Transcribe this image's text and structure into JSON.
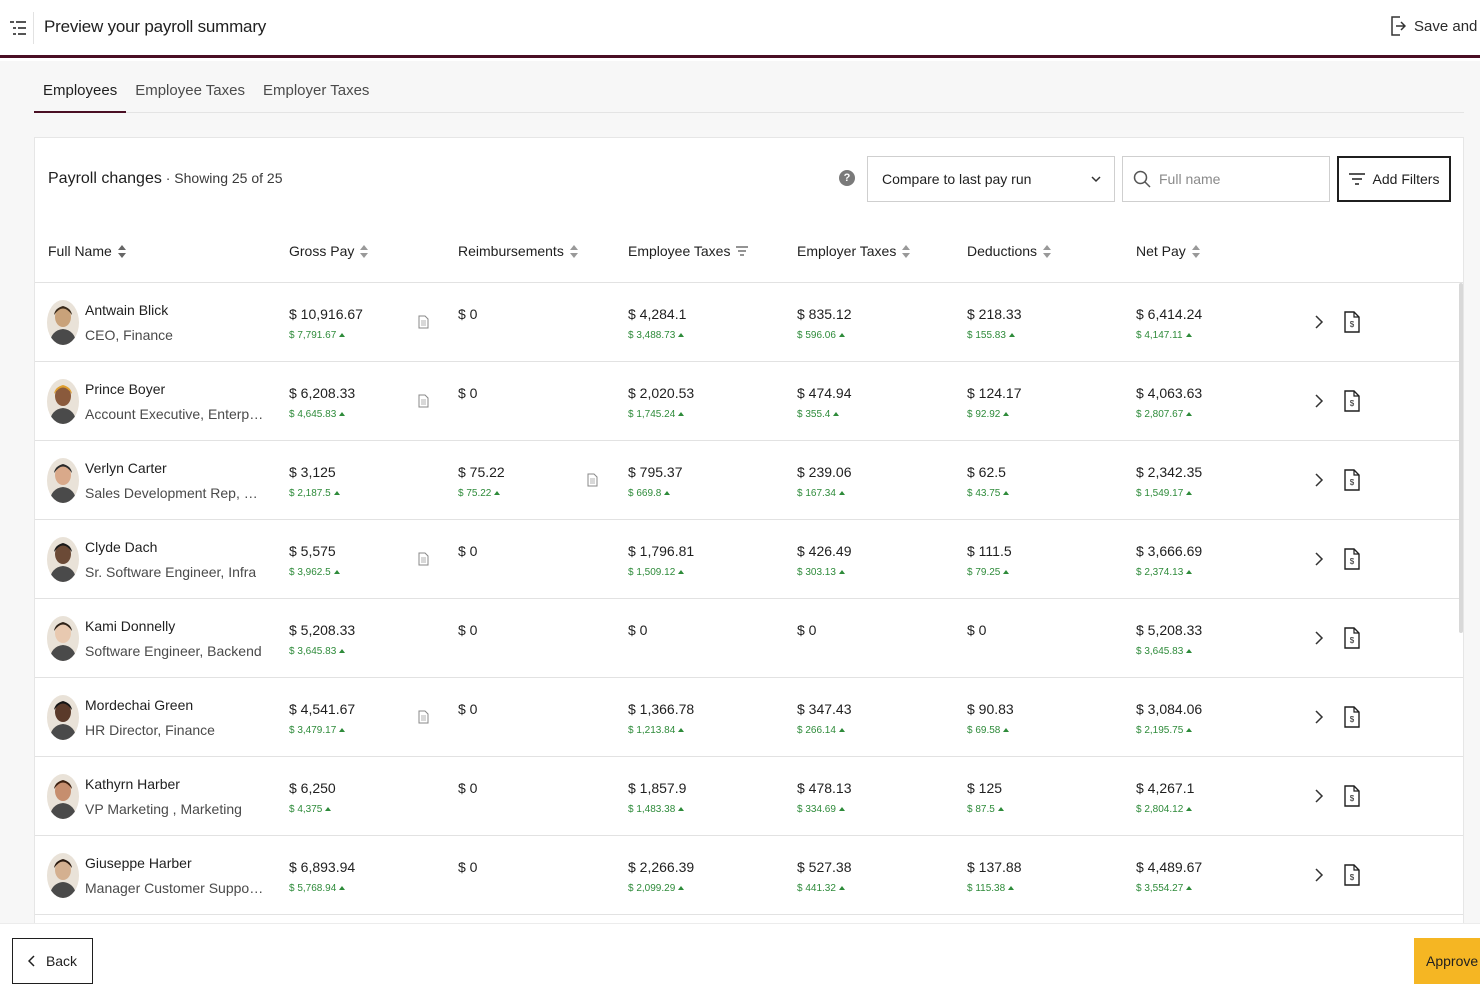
{
  "header": {
    "title": "Preview your payroll summary",
    "save_label": "Save and ex"
  },
  "tabs": [
    {
      "label": "Employees",
      "active": true
    },
    {
      "label": "Employee Taxes",
      "active": false
    },
    {
      "label": "Employer Taxes",
      "active": false
    }
  ],
  "card": {
    "title": "Payroll changes",
    "subtitle": " · Showing 25 of 25",
    "help": "?",
    "compare_select": "Compare to last pay run",
    "search_placeholder": "Full name",
    "filters_label": "Add Filters"
  },
  "columns": [
    "Full Name",
    "Gross Pay",
    "Reimbursements",
    "Employee Taxes",
    "Employer Taxes",
    "Deductions",
    "Net Pay"
  ],
  "rows": [
    {
      "name": "Antwain Blick",
      "role": "CEO, Finance",
      "gross": "$ 10,916.67",
      "gross_prev": "$ 7,791.67",
      "gross_doc": true,
      "reimb": "$ 0",
      "reimb_prev": "",
      "reimb_doc": false,
      "emp_tax": "$ 4,284.1",
      "emp_tax_prev": "$ 3,488.73",
      "er_tax": "$ 835.12",
      "er_tax_prev": "$ 596.06",
      "ded": "$ 218.33",
      "ded_prev": "$ 155.83",
      "net": "$ 6,414.24",
      "net_prev": "$ 4,147.11"
    },
    {
      "name": "Prince Boyer",
      "role": "Account Executive, Enterprise",
      "gross": "$ 6,208.33",
      "gross_prev": "$ 4,645.83",
      "gross_doc": true,
      "reimb": "$ 0",
      "reimb_prev": "",
      "reimb_doc": false,
      "emp_tax": "$ 2,020.53",
      "emp_tax_prev": "$ 1,745.24",
      "er_tax": "$ 474.94",
      "er_tax_prev": "$ 355.4",
      "ded": "$ 124.17",
      "ded_prev": "$ 92.92",
      "net": "$ 4,063.63",
      "net_prev": "$ 2,807.67"
    },
    {
      "name": "Verlyn Carter",
      "role": "Sales Development Rep, Sale...",
      "gross": "$ 3,125",
      "gross_prev": "$ 2,187.5",
      "gross_doc": false,
      "reimb": "$ 75.22",
      "reimb_prev": "$ 75.22",
      "reimb_doc": true,
      "emp_tax": "$ 795.37",
      "emp_tax_prev": "$ 669.8",
      "er_tax": "$ 239.06",
      "er_tax_prev": "$ 167.34",
      "ded": "$ 62.5",
      "ded_prev": "$ 43.75",
      "net": "$ 2,342.35",
      "net_prev": "$ 1,549.17"
    },
    {
      "name": "Clyde Dach",
      "role": "Sr. Software Engineer, Infra",
      "gross": "$ 5,575",
      "gross_prev": "$ 3,962.5",
      "gross_doc": true,
      "reimb": "$ 0",
      "reimb_prev": "",
      "reimb_doc": false,
      "emp_tax": "$ 1,796.81",
      "emp_tax_prev": "$ 1,509.12",
      "er_tax": "$ 426.49",
      "er_tax_prev": "$ 303.13",
      "ded": "$ 111.5",
      "ded_prev": "$ 79.25",
      "net": "$ 3,666.69",
      "net_prev": "$ 2,374.13"
    },
    {
      "name": "Kami Donnelly",
      "role": "Software Engineer, Backend",
      "gross": "$ 5,208.33",
      "gross_prev": "$ 3,645.83",
      "gross_doc": false,
      "reimb": "$ 0",
      "reimb_prev": "",
      "reimb_doc": false,
      "emp_tax": "$ 0",
      "emp_tax_prev": "",
      "er_tax": "$ 0",
      "er_tax_prev": "",
      "ded": "$ 0",
      "ded_prev": "",
      "net": "$ 5,208.33",
      "net_prev": "$ 3,645.83"
    },
    {
      "name": "Mordechai Green",
      "role": "HR Director, Finance",
      "gross": "$ 4,541.67",
      "gross_prev": "$ 3,479.17",
      "gross_doc": true,
      "reimb": "$ 0",
      "reimb_prev": "",
      "reimb_doc": false,
      "emp_tax": "$ 1,366.78",
      "emp_tax_prev": "$ 1,213.84",
      "er_tax": "$ 347.43",
      "er_tax_prev": "$ 266.14",
      "ded": "$ 90.83",
      "ded_prev": "$ 69.58",
      "net": "$ 3,084.06",
      "net_prev": "$ 2,195.75"
    },
    {
      "name": "Kathyrn Harber",
      "role": "VP Marketing , Marketing",
      "gross": "$ 6,250",
      "gross_prev": "$ 4,375",
      "gross_doc": false,
      "reimb": "$ 0",
      "reimb_prev": "",
      "reimb_doc": false,
      "emp_tax": "$ 1,857.9",
      "emp_tax_prev": "$ 1,483.38",
      "er_tax": "$ 478.13",
      "er_tax_prev": "$ 334.69",
      "ded": "$ 125",
      "ded_prev": "$ 87.5",
      "net": "$ 4,267.1",
      "net_prev": "$ 2,804.12"
    },
    {
      "name": "Giuseppe Harber",
      "role": "Manager Customer Support, ...",
      "gross": "$ 6,893.94",
      "gross_prev": "$ 5,768.94",
      "gross_doc": false,
      "reimb": "$ 0",
      "reimb_prev": "",
      "reimb_doc": false,
      "emp_tax": "$ 2,266.39",
      "emp_tax_prev": "$ 2,099.29",
      "er_tax": "$ 527.38",
      "er_tax_prev": "$ 441.32",
      "ded": "$ 137.88",
      "ded_prev": "$ 115.38",
      "net": "$ 4,489.67",
      "net_prev": "$ 3,554.27"
    }
  ],
  "footer": {
    "back_label": "Back",
    "approve_label": "Approve"
  },
  "colors": {
    "accent": "#4a0f24",
    "approve": "#f5b623",
    "delta_green": "#2e8b3a"
  },
  "icons": [
    "menu-icon",
    "exit-icon",
    "help-icon",
    "chevron-down-icon",
    "search-icon",
    "filter-icon",
    "sort-icon",
    "document-icon",
    "chevron-right-icon",
    "payslip-icon",
    "chevron-left-icon"
  ]
}
